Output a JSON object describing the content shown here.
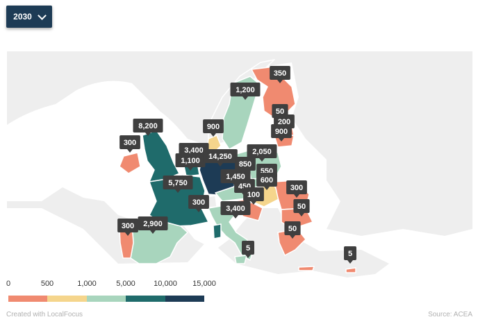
{
  "selector": {
    "year": "2030"
  },
  "map": {
    "markers": [
      {
        "country": "Finland",
        "label": "350"
      },
      {
        "country": "Sweden",
        "label": "1,200"
      },
      {
        "country": "Estonia",
        "label": "50"
      },
      {
        "country": "Latvia",
        "label": "200"
      },
      {
        "country": "Lithuania",
        "label": "900"
      },
      {
        "country": "Denmark",
        "label": "900"
      },
      {
        "country": "Ireland",
        "label": "300"
      },
      {
        "country": "United Kingdom",
        "label": "8,200"
      },
      {
        "country": "Netherlands",
        "label": "3,400"
      },
      {
        "country": "Belgium",
        "label": "1,100"
      },
      {
        "country": "Germany",
        "label": "14,250"
      },
      {
        "country": "Poland",
        "label": "2,050"
      },
      {
        "country": "Czechia",
        "label": "850"
      },
      {
        "country": "Slovakia",
        "label": "550"
      },
      {
        "country": "Austria",
        "label": "1,450"
      },
      {
        "country": "Hungary",
        "label": "600"
      },
      {
        "country": "Slovenia",
        "label": "450"
      },
      {
        "country": "Croatia",
        "label": "100"
      },
      {
        "country": "Romania",
        "label": "300"
      },
      {
        "country": "Bulgaria",
        "label": "50"
      },
      {
        "country": "France",
        "label": "5,750"
      },
      {
        "country": "Switzerland",
        "label": "300"
      },
      {
        "country": "Italy",
        "label": "3,400"
      },
      {
        "country": "Portugal",
        "label": "300"
      },
      {
        "country": "Spain",
        "label": "2,900"
      },
      {
        "country": "Greece",
        "label": "50"
      },
      {
        "country": "Malta",
        "label": "5"
      },
      {
        "country": "Cyprus",
        "label": "5"
      }
    ]
  },
  "legend": {
    "ticks": [
      "0",
      "500",
      "1,000",
      "5,000",
      "10,000",
      "15,000"
    ],
    "colors": [
      "#f08a70",
      "#f5d58c",
      "#a8d5bd",
      "#1f6b6b",
      "#1d3b55"
    ]
  },
  "footer": {
    "credit": "Created with LocalFocus",
    "source": "Source:  ACEA"
  },
  "colors": {
    "ocean": "#ffffff",
    "land": "#eeeeee",
    "label_bg": "#3f3f3f",
    "label_text": "#ffffff"
  }
}
